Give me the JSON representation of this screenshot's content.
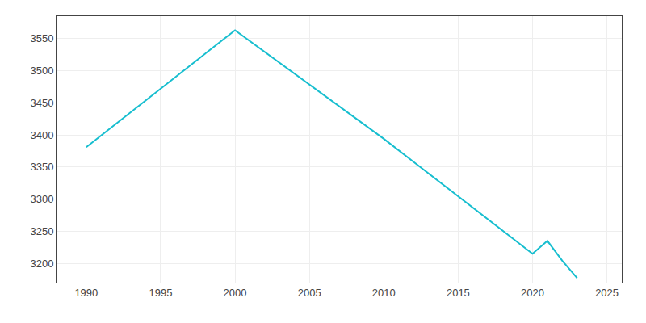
{
  "chart_data": {
    "type": "line",
    "x": [
      1990,
      2000,
      2010,
      2020,
      2021,
      2022,
      2023
    ],
    "values": [
      3381,
      3563,
      3394,
      3215,
      3235,
      3204,
      3177
    ],
    "color": "#17becf",
    "xlim": [
      1988,
      2026
    ],
    "ylim": [
      3170,
      3585
    ],
    "xticks": [
      1990,
      1995,
      2000,
      2005,
      2010,
      2015,
      2020,
      2025
    ],
    "yticks": [
      3200,
      3250,
      3300,
      3350,
      3400,
      3450,
      3500,
      3550
    ],
    "grid": true
  }
}
